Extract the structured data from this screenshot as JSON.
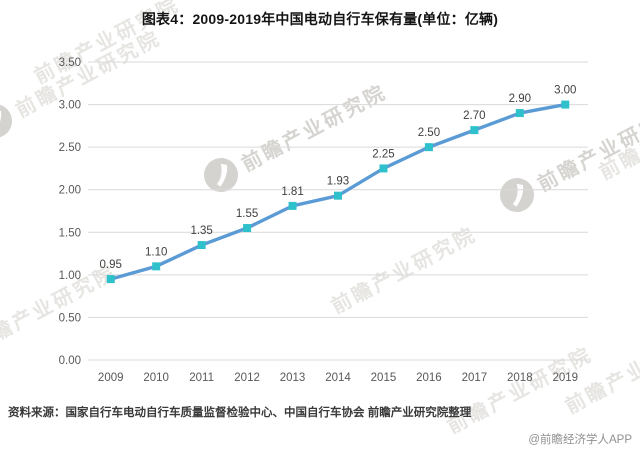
{
  "header": {
    "title": "图表4：2009-2019年中国电动自行车保有量(单位：亿辆)"
  },
  "footer": {
    "source_note": "资料来源：国家自行车电动自行车质量监督检验中心、中国自行车协会 前瞻产业研究院整理",
    "credit": "@前瞻经济学人APP"
  },
  "watermark": {
    "text": "前瞻产业研究院"
  },
  "colors": {
    "line": "#5B9BD5",
    "marker": "#2EC1CC",
    "grid": "#D9D9D9",
    "axis_text": "#595959",
    "data_label": "#404040",
    "title_text": "#141414"
  },
  "chart_data": {
    "type": "line",
    "title": "图表4：2009-2019年中国电动自行车保有量(单位：亿辆)",
    "categories": [
      "2009",
      "2010",
      "2011",
      "2012",
      "2013",
      "2014",
      "2015",
      "2016",
      "2017",
      "2018",
      "2019"
    ],
    "values": [
      0.95,
      1.1,
      1.35,
      1.55,
      1.81,
      1.93,
      2.25,
      2.5,
      2.7,
      2.9,
      3.0
    ],
    "data_labels": [
      "0.95",
      "1.10",
      "1.35",
      "1.55",
      "1.81",
      "1.93",
      "2.25",
      "2.50",
      "2.70",
      "2.90",
      "3.00"
    ],
    "yticks": [
      "0.00",
      "0.50",
      "1.00",
      "1.50",
      "2.00",
      "2.50",
      "3.00",
      "3.50"
    ],
    "ylim": [
      0,
      3.5
    ],
    "ytick_step": 0.5,
    "xlabel": "",
    "ylabel": "",
    "unit": "亿辆",
    "grid": true,
    "legend": "none",
    "marker": "square",
    "line_color": "#5B9BD5",
    "marker_color": "#2EC1CC"
  }
}
